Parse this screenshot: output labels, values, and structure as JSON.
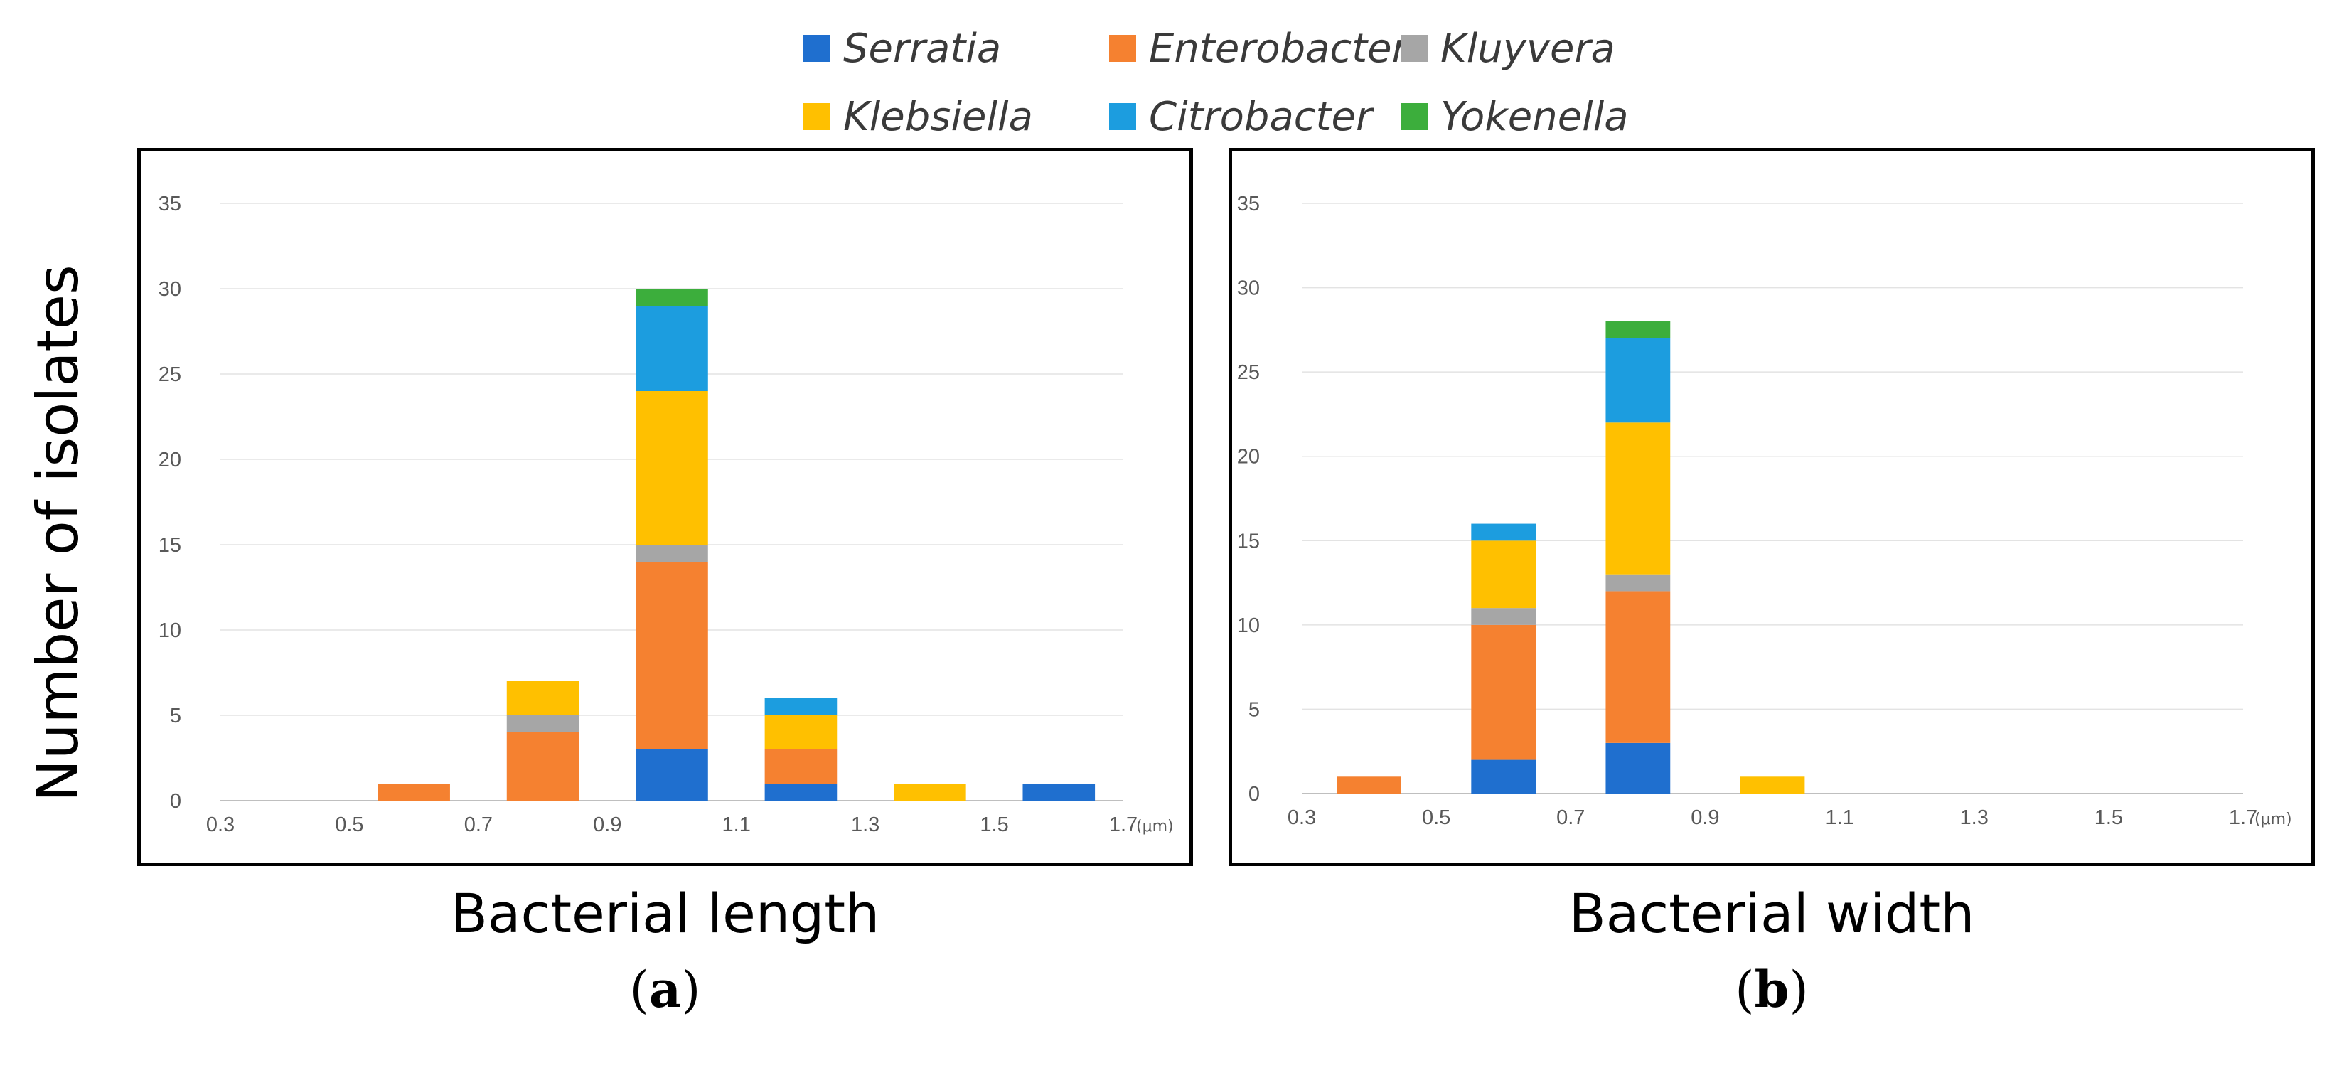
{
  "legend": [
    {
      "name": "Serratia",
      "color": "#1f6fcf"
    },
    {
      "name": "Enterobacter",
      "color": "#f58130"
    },
    {
      "name": "Kluyvera",
      "color": "#a6a6a6"
    },
    {
      "name": "Klebsiella",
      "color": "#ffc000"
    },
    {
      "name": "Citrobacter",
      "color": "#1c9ddf"
    },
    {
      "name": "Yokenella",
      "color": "#3cae3c"
    }
  ],
  "ylabel": "Number of isolates",
  "chart_data": [
    {
      "type": "bar",
      "stacked": true,
      "xlabel": "Bacterial length",
      "x_unit": "(μm)",
      "panel_label": "a",
      "x_ticks": [
        "0.3",
        "0.5",
        "0.7",
        "0.9",
        "1.1",
        "1.3",
        "1.5",
        "1.7"
      ],
      "x_range": [
        0.3,
        1.7
      ],
      "bin_width": 0.2,
      "categories": [
        "0.3–0.5",
        "0.5–0.7",
        "0.7–0.9",
        "0.9–1.1",
        "1.1–1.3",
        "1.3–1.5",
        "1.5–1.7"
      ],
      "ylim": [
        0,
        35
      ],
      "y_ticks": [
        0,
        5,
        10,
        15,
        20,
        25,
        30,
        35
      ],
      "grid": true,
      "series": [
        {
          "name": "Serratia",
          "values": [
            0,
            0,
            0,
            3,
            1,
            0,
            1
          ]
        },
        {
          "name": "Enterobacter",
          "values": [
            0,
            1,
            4,
            11,
            2,
            0,
            0
          ]
        },
        {
          "name": "Kluyvera",
          "values": [
            0,
            0,
            1,
            1,
            0,
            0,
            0
          ]
        },
        {
          "name": "Klebsiella",
          "values": [
            0,
            0,
            2,
            9,
            2,
            1,
            0
          ]
        },
        {
          "name": "Citrobacter",
          "values": [
            0,
            0,
            0,
            5,
            1,
            0,
            0
          ]
        },
        {
          "name": "Yokenella",
          "values": [
            0,
            0,
            0,
            1,
            0,
            0,
            0
          ]
        }
      ]
    },
    {
      "type": "bar",
      "stacked": true,
      "xlabel": "Bacterial width",
      "x_unit": "(μm)",
      "panel_label": "b",
      "x_ticks": [
        "0.3",
        "0.5",
        "0.7",
        "0.9",
        "1.1",
        "1.3",
        "1.5",
        "1.7"
      ],
      "x_range": [
        0.3,
        1.7
      ],
      "bin_width": 0.2,
      "categories": [
        "0.3–0.5",
        "0.5–0.7",
        "0.7–0.9",
        "0.9–1.1",
        "1.1–1.3",
        "1.3–1.5",
        "1.5–1.7"
      ],
      "ylim": [
        0,
        35
      ],
      "y_ticks": [
        0,
        5,
        10,
        15,
        20,
        25,
        30,
        35
      ],
      "grid": true,
      "series": [
        {
          "name": "Serratia",
          "values": [
            0,
            2,
            3,
            0,
            0,
            0,
            0
          ]
        },
        {
          "name": "Enterobacter",
          "values": [
            1,
            8,
            9,
            0,
            0,
            0,
            0
          ]
        },
        {
          "name": "Kluyvera",
          "values": [
            0,
            1,
            1,
            0,
            0,
            0,
            0
          ]
        },
        {
          "name": "Klebsiella",
          "values": [
            0,
            4,
            9,
            1,
            0,
            0,
            0
          ]
        },
        {
          "name": "Citrobacter",
          "values": [
            0,
            1,
            5,
            0,
            0,
            0,
            0
          ]
        },
        {
          "name": "Yokenella",
          "values": [
            0,
            0,
            1,
            0,
            0,
            0,
            0
          ]
        }
      ]
    }
  ]
}
